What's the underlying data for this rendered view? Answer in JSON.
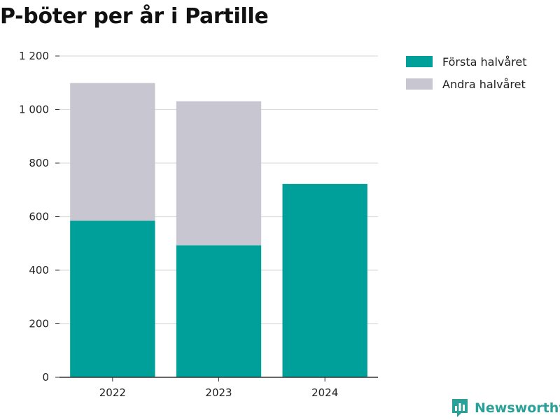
{
  "title": "P-böter per år i Partille",
  "brand": {
    "name": "Newsworthy",
    "icon": "newsworthy-logo-icon",
    "color": "#2aa198"
  },
  "colors": {
    "first_half": "#00a09a",
    "second_half": "#c8c7d1",
    "grid": "#dddddd",
    "axis": "#333333"
  },
  "chart_data": {
    "type": "bar",
    "stacked": true,
    "title": "P-böter per år i Partille",
    "xlabel": "",
    "ylabel": "",
    "categories": [
      "2022",
      "2023",
      "2024"
    ],
    "series": [
      {
        "name": "Första halvåret",
        "values": [
          585,
          493,
          722
        ]
      },
      {
        "name": "Andra halvåret",
        "values": [
          514,
          538,
          0
        ]
      }
    ],
    "ylim": [
      0,
      1200
    ],
    "yticks": [
      0,
      200,
      400,
      600,
      800,
      1000,
      1200
    ],
    "ytick_labels": [
      "0",
      "200",
      "400",
      "600",
      "800",
      "1 000",
      "1 200"
    ],
    "grid": true,
    "legend_position": "top-right"
  }
}
